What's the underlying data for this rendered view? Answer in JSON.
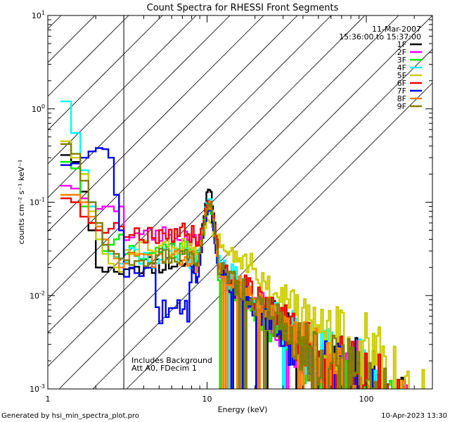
{
  "chart_data": {
    "type": "line",
    "title": "Count Spectra for RHESSI Front Segments",
    "xlabel": "Energy (keV)",
    "ylabel": "counts cm⁻² s⁻¹ keV⁻¹",
    "xscale": "log",
    "yscale": "log",
    "xlim": [
      1,
      260
    ],
    "ylim": [
      0.001,
      10
    ],
    "x_ticks": [
      {
        "v": 1,
        "label": "1"
      },
      {
        "v": 10,
        "label": "10"
      },
      {
        "v": 100,
        "label": "100"
      }
    ],
    "y_ticks": [
      {
        "v": 0.001,
        "base": "10",
        "exp": "-3"
      },
      {
        "v": 0.01,
        "base": "10",
        "exp": "-2"
      },
      {
        "v": 0.1,
        "base": "10",
        "exp": "-1"
      },
      {
        "v": 1,
        "base": "10",
        "exp": "0"
      },
      {
        "v": 10,
        "base": "10",
        "exp": "1"
      }
    ],
    "hatched_region_max_kev": 3,
    "date": "11-Mar-2007",
    "time_range": "15:36:00 to 15:37:00",
    "annotations": [
      "Includes Background",
      "Att A0, FDecim 1"
    ],
    "footer_left": "Generated by hsi_min_spectra_plot.pro",
    "footer_right": "10-Apr-2023 13:30",
    "series": [
      {
        "name": "1F",
        "color": "#000000",
        "seed": 11,
        "low": [
          0.32,
          0.27,
          0.13,
          0.05,
          0.02,
          0.018,
          0.02,
          0.018,
          0.017
        ],
        "mid": 0.022,
        "peak": 0.13,
        "tail": 0.0042
      },
      {
        "name": "2F",
        "color": "#ff00ff",
        "seed": 23,
        "low": [
          0.15,
          0.14,
          0.11,
          0.09,
          0.085,
          0.09,
          0.09,
          0.08,
          0.09
        ],
        "mid": 0.045,
        "peak": 0.085,
        "tail": 0.004
      },
      {
        "name": "3F",
        "color": "#00ee00",
        "seed": 37,
        "low": [
          0.27,
          0.23,
          0.09,
          0.06,
          0.05,
          0.03,
          0.035,
          0.04,
          0.045
        ],
        "mid": 0.032,
        "peak": 0.09,
        "tail": 0.0033
      },
      {
        "name": "4F",
        "color": "#00ffff",
        "seed": 41,
        "low": [
          1.2,
          0.55,
          0.22,
          0.09,
          0.055,
          0.035,
          0.028,
          0.026,
          0.022
        ],
        "mid": 0.026,
        "peak": 0.11,
        "tail": 0.0045
      },
      {
        "name": "5F",
        "color": "#cccc00",
        "seed": 53,
        "low": [
          0.45,
          0.3,
          0.2,
          0.08,
          0.04,
          0.028,
          0.022,
          0.02,
          0.018
        ],
        "mid": 0.035,
        "peak": 0.065,
        "tail": 0.0085
      },
      {
        "name": "6F",
        "color": "#ee0000",
        "seed": 67,
        "low": [
          0.11,
          0.1,
          0.07,
          0.06,
          0.05,
          0.047,
          0.052,
          0.06,
          0.055
        ],
        "mid": 0.048,
        "peak": 0.1,
        "tail": 0.0045
      },
      {
        "name": "7F",
        "color": "#0000ee",
        "seed": 71,
        "low": [
          0.25,
          0.26,
          0.3,
          0.35,
          0.38,
          0.37,
          0.3,
          0.12,
          0.05
        ],
        "mid": 0.018,
        "peak": 0.085,
        "tail": 0.0035
      },
      {
        "name": "8F",
        "color": "#ff7f00",
        "seed": 83,
        "low": [
          0.12,
          0.12,
          0.1,
          0.07,
          0.055,
          0.04,
          0.03,
          0.025,
          0.02
        ],
        "mid": 0.025,
        "peak": 0.095,
        "tail": 0.0042
      },
      {
        "name": "9F",
        "color": "#7f7f00",
        "seed": 97,
        "low": [
          0.42,
          0.33,
          0.17,
          0.1,
          0.06,
          0.035,
          0.03,
          0.028,
          0.025
        ],
        "mid": 0.027,
        "peak": 0.1,
        "tail": 0.004
      }
    ]
  }
}
